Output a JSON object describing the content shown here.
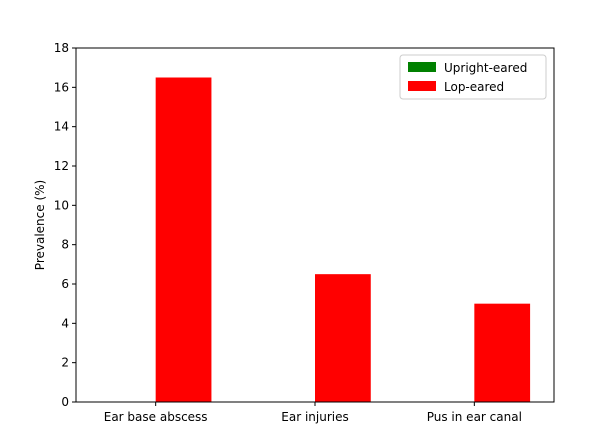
{
  "chart_data": {
    "type": "bar",
    "categories": [
      "Ear base abscess",
      "Ear injuries",
      "Pus in ear canal"
    ],
    "series": [
      {
        "name": "Upright-eared",
        "values": [
          0,
          0,
          0
        ],
        "color": "#008000"
      },
      {
        "name": "Lop-eared",
        "values": [
          16.5,
          6.5,
          5.0
        ],
        "color": "#ff0000"
      }
    ],
    "title": "",
    "xlabel": "",
    "ylabel": "Prevalence (%)",
    "ylim": [
      0,
      18
    ],
    "yticks": [
      0,
      2,
      4,
      6,
      8,
      10,
      12,
      14,
      16,
      18
    ],
    "grid": false,
    "legend_position": "top-right"
  }
}
